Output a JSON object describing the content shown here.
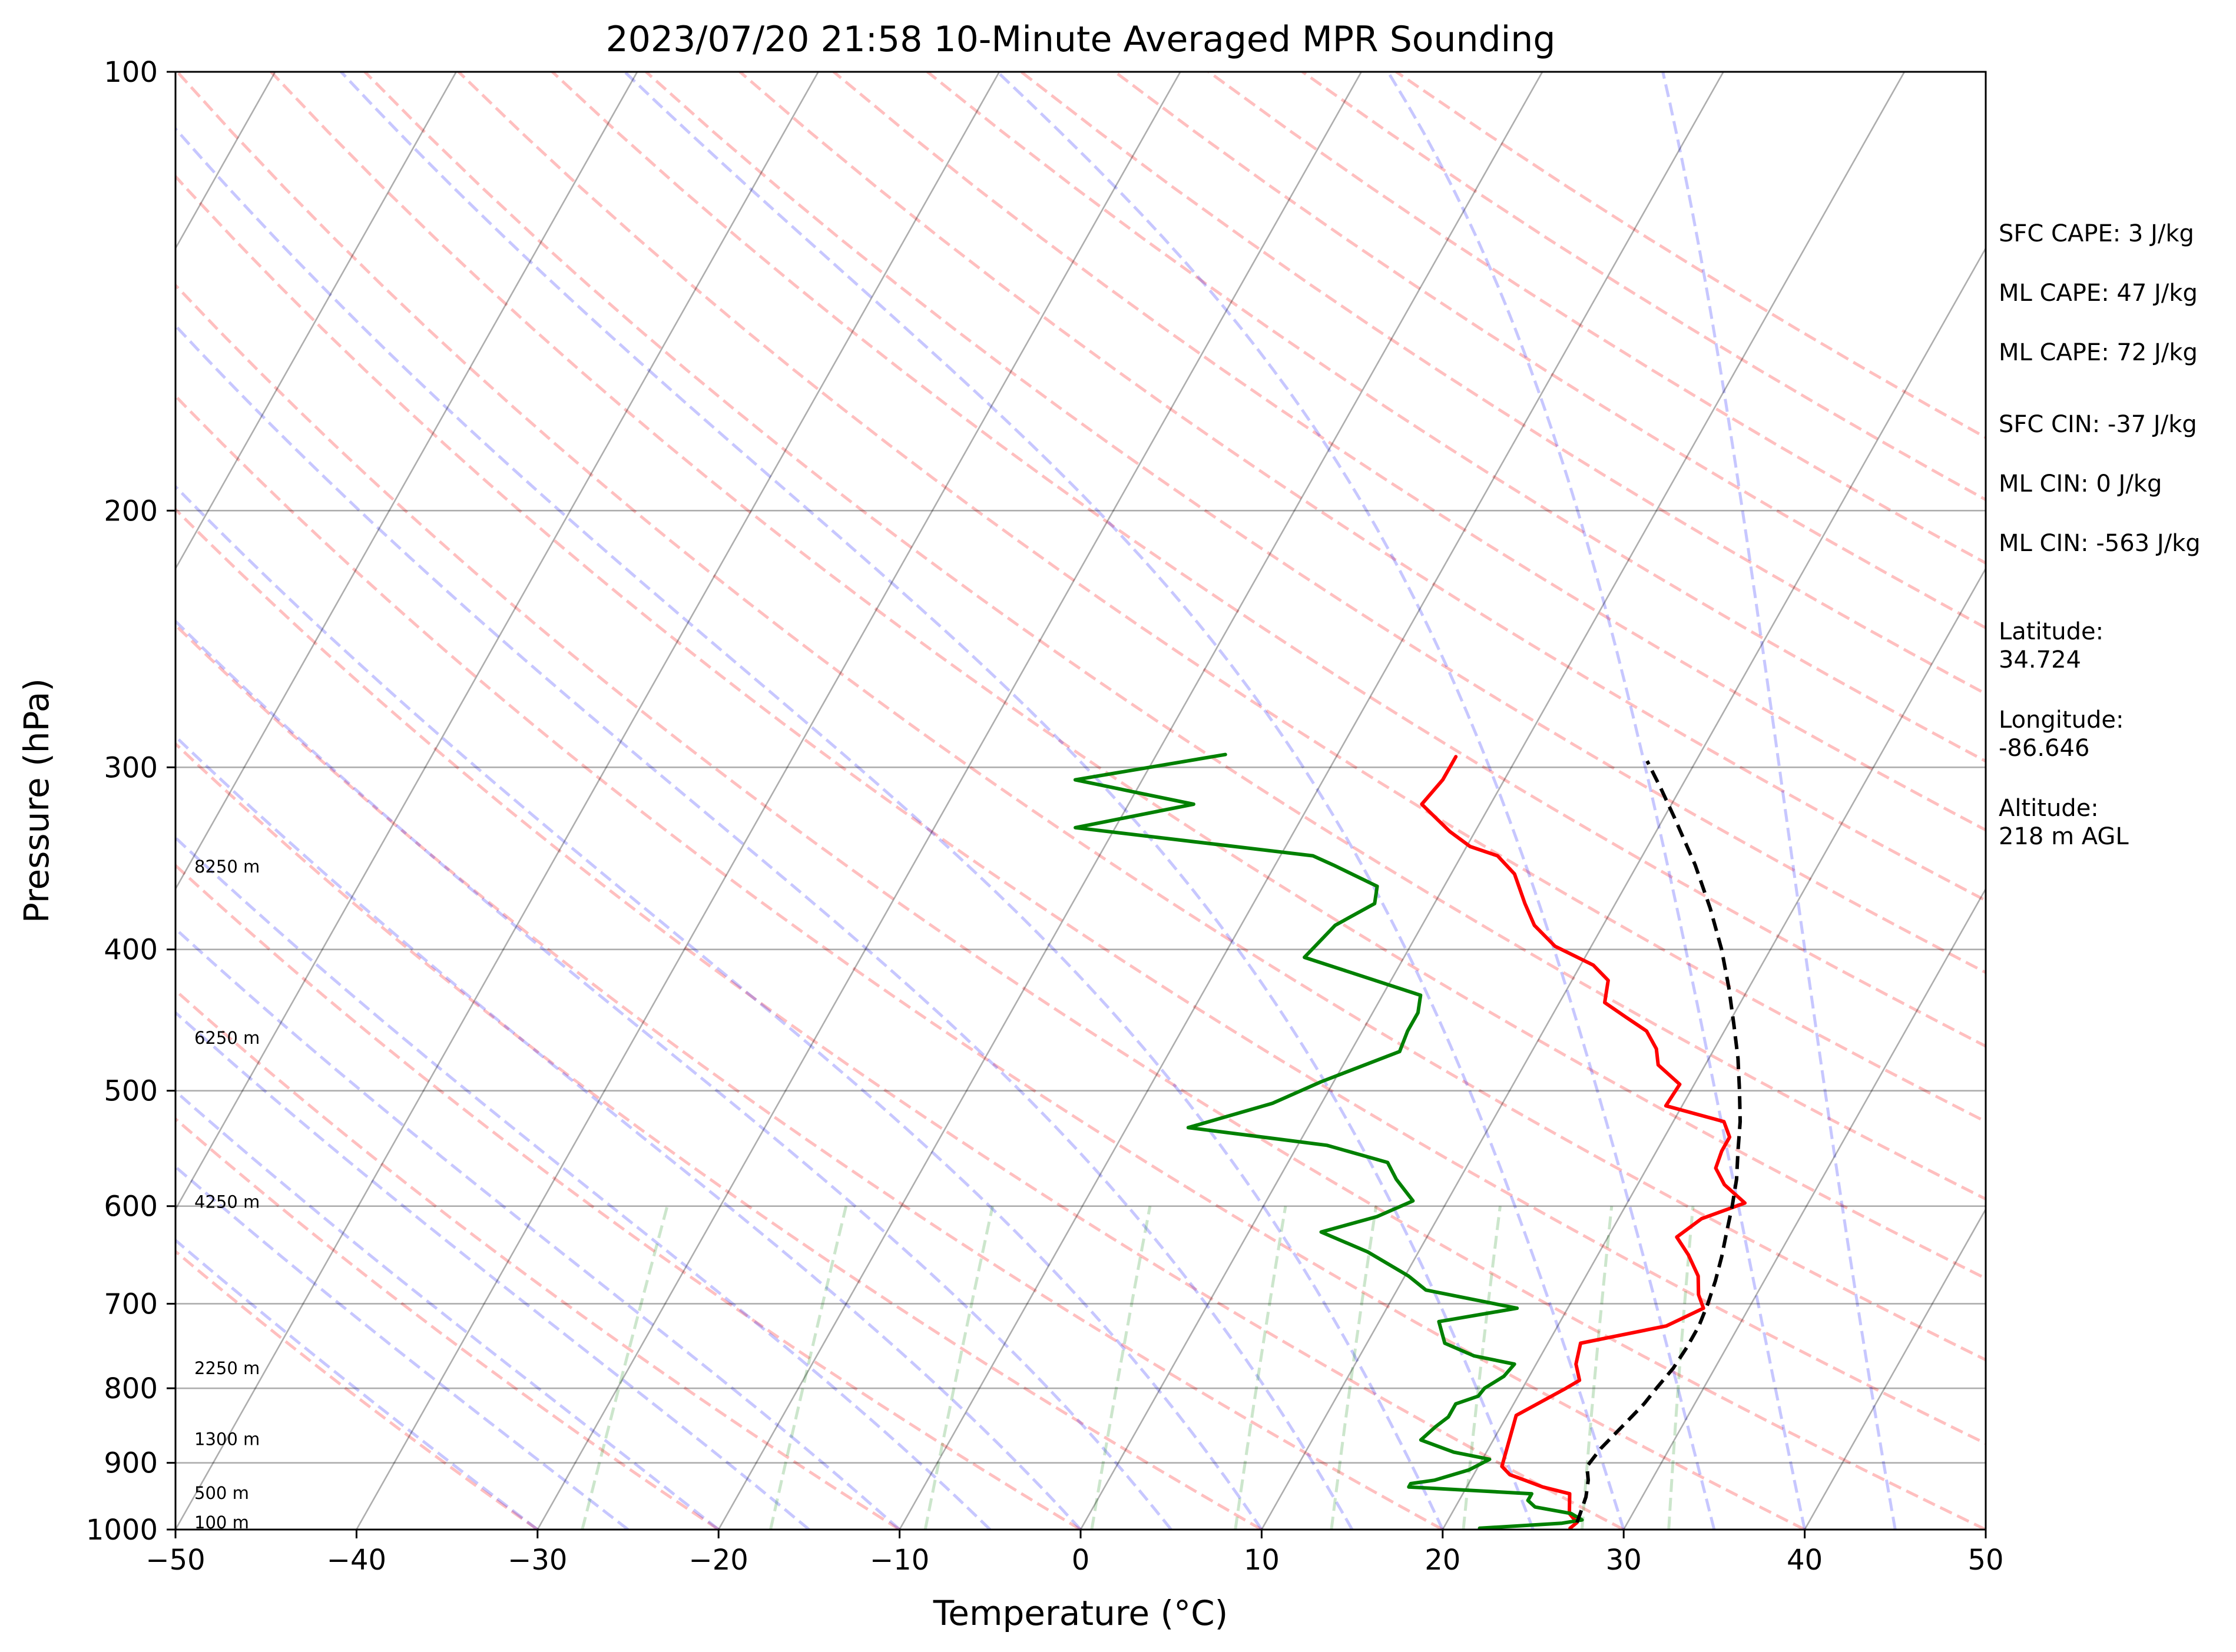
{
  "chart_data": {
    "type": "skew-t",
    "title": "2023/07/20 21:58 10-Minute Averaged MPR Sounding",
    "xlabel": "Temperature (°C)",
    "ylabel": "Pressure (hPa)",
    "xlim": [
      -50,
      50
    ],
    "ylim": [
      1000,
      100
    ],
    "y_scale": "log",
    "x_ticks": [
      "−50",
      "−40",
      "−30",
      "−20",
      "−10",
      "0",
      "10",
      "20",
      "30",
      "40",
      "50"
    ],
    "x_tick_values": [
      -50,
      -40,
      -30,
      -20,
      -10,
      0,
      10,
      20,
      30,
      40,
      50
    ],
    "y_ticks": [
      "1000",
      "900",
      "800",
      "700",
      "600",
      "500",
      "400",
      "300",
      "200",
      "100"
    ],
    "y_tick_values": [
      1000,
      900,
      800,
      700,
      600,
      500,
      400,
      300,
      200,
      100
    ],
    "grid": true,
    "altitude_labels": [
      {
        "text": "100 m",
        "p": 989
      },
      {
        "text": "500 m",
        "p": 944
      },
      {
        "text": "1300 m",
        "p": 867
      },
      {
        "text": "2250 m",
        "p": 775
      },
      {
        "text": "4250 m",
        "p": 596
      },
      {
        "text": "6250 m",
        "p": 460
      },
      {
        "text": "8250 m",
        "p": 351
      }
    ],
    "info_text": [
      "SFC CAPE: 3 J/kg",
      "ML CAPE: 47 J/kg",
      "ML CAPE: 72 J/kg",
      "SFC CIN: -37 J/kg",
      "ML CIN: 0 J/kg",
      "ML CIN: -563 J/kg",
      "Latitude:\n34.724",
      "Longitude:\n-86.646",
      "Altitude:\n218 m AGL"
    ],
    "series": [
      {
        "color": "#ff0000",
        "points": [
          [
            998,
            27.0
          ],
          [
            989,
            27.2
          ],
          [
            975,
            26.5
          ],
          [
            945,
            25.9
          ],
          [
            935,
            24.2
          ],
          [
            925,
            23.0
          ],
          [
            917,
            22.0
          ],
          [
            905,
            21.3
          ],
          [
            835,
            20.5
          ],
          [
            800,
            22.4
          ],
          [
            790,
            22.9
          ],
          [
            770,
            22.2
          ],
          [
            745,
            21.8
          ],
          [
            725,
            26.0
          ],
          [
            705,
            27.5
          ],
          [
            690,
            26.8
          ],
          [
            670,
            26.2
          ],
          [
            648,
            25.0
          ],
          [
            630,
            23.8
          ],
          [
            612,
            24.6
          ],
          [
            597,
            26.5
          ],
          [
            580,
            24.8
          ],
          [
            565,
            23.8
          ],
          [
            550,
            23.6
          ],
          [
            538,
            23.6
          ],
          [
            525,
            22.8
          ],
          [
            512,
            19.1
          ],
          [
            495,
            19.2
          ],
          [
            480,
            17.4
          ],
          [
            468,
            16.8
          ],
          [
            455,
            15.7
          ],
          [
            445,
            14.1
          ],
          [
            435,
            12.5
          ],
          [
            420,
            12.0
          ],
          [
            410,
            10.7
          ],
          [
            398,
            8.0
          ],
          [
            385,
            6.2
          ],
          [
            372,
            5.0
          ],
          [
            355,
            3.5
          ],
          [
            345,
            2.0
          ],
          [
            340,
            0.2
          ],
          [
            332,
            -1.4
          ],
          [
            318,
            -3.8
          ],
          [
            306,
            -3.4
          ],
          [
            295,
            -3.4
          ]
        ]
      },
      {
        "color": "#008000",
        "points": [
          [
            998,
            22.0
          ],
          [
            990,
            26.4
          ],
          [
            985,
            27.4
          ],
          [
            975,
            26.6
          ],
          [
            965,
            24.4
          ],
          [
            955,
            23.8
          ],
          [
            945,
            23.8
          ],
          [
            935,
            16.8
          ],
          [
            930,
            16.8
          ],
          [
            925,
            18.0
          ],
          [
            910,
            19.6
          ],
          [
            895,
            20.4
          ],
          [
            885,
            18.2
          ],
          [
            868,
            16.0
          ],
          [
            850,
            16.4
          ],
          [
            837,
            16.8
          ],
          [
            820,
            16.8
          ],
          [
            810,
            17.8
          ],
          [
            800,
            17.9
          ],
          [
            785,
            18.6
          ],
          [
            770,
            18.8
          ],
          [
            760,
            16.3
          ],
          [
            745,
            14.3
          ],
          [
            720,
            13.3
          ],
          [
            705,
            17.2
          ],
          [
            685,
            11.6
          ],
          [
            670,
            10.2
          ],
          [
            645,
            7.2
          ],
          [
            625,
            4.0
          ],
          [
            610,
            6.6
          ],
          [
            595,
            8.1
          ],
          [
            575,
            6.5
          ],
          [
            560,
            5.5
          ],
          [
            545,
            1.6
          ],
          [
            530,
            -6.6
          ],
          [
            510,
            -2.7
          ],
          [
            493,
            -0.7
          ],
          [
            470,
            2.7
          ],
          [
            455,
            2.5
          ],
          [
            442,
            2.5
          ],
          [
            430,
            2.1
          ],
          [
            405,
            -5.5
          ],
          [
            385,
            -4.8
          ],
          [
            372,
            -3.3
          ],
          [
            362,
            -3.7
          ],
          [
            350,
            -6.8
          ],
          [
            345,
            -8.2
          ],
          [
            330,
            -22.2
          ],
          [
            318,
            -16.4
          ],
          [
            306,
            -23.7
          ],
          [
            294,
            -16.2
          ]
        ]
      },
      {
        "color": "#000000",
        "dashed": true,
        "points": [
          [
            989,
            27.2
          ],
          [
            975,
            27.1
          ],
          [
            950,
            26.9
          ],
          [
            925,
            26.5
          ],
          [
            905,
            26.0
          ],
          [
            880,
            26.2
          ],
          [
            850,
            26.7
          ],
          [
            820,
            27.2
          ],
          [
            800,
            27.4
          ],
          [
            775,
            27.7
          ],
          [
            750,
            27.8
          ],
          [
            725,
            27.8
          ],
          [
            700,
            27.6
          ],
          [
            675,
            27.3
          ],
          [
            650,
            26.9
          ],
          [
            625,
            26.4
          ],
          [
            600,
            25.9
          ],
          [
            575,
            25.3
          ],
          [
            550,
            24.5
          ],
          [
            525,
            23.7
          ],
          [
            500,
            22.7
          ],
          [
            475,
            21.6
          ],
          [
            450,
            20.3
          ],
          [
            425,
            18.9
          ],
          [
            400,
            17.3
          ],
          [
            375,
            15.4
          ],
          [
            350,
            13.2
          ],
          [
            325,
            10.6
          ],
          [
            310,
            8.9
          ],
          [
            297,
            7.3
          ]
        ]
      }
    ]
  }
}
